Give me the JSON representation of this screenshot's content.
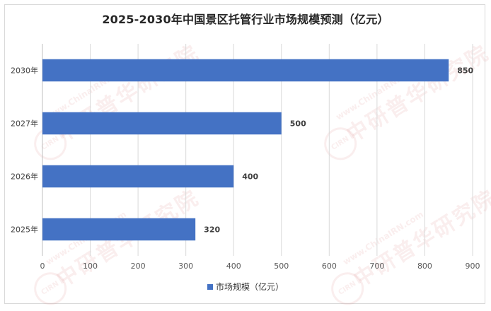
{
  "chart_data": {
    "type": "bar",
    "orientation": "horizontal",
    "title": "2025-2030年中国景区托管行业市场规模预测（亿元）",
    "categories": [
      "2030年",
      "2027年",
      "2026年",
      "2025年"
    ],
    "series": [
      {
        "name": "市场规模（亿元）",
        "values": [
          850,
          500,
          400,
          320
        ],
        "color": "#4472C4"
      }
    ],
    "xlim": [
      0,
      900
    ],
    "xticks": [
      "0",
      "100",
      "200",
      "300",
      "400",
      "500",
      "600",
      "700",
      "800",
      "900"
    ],
    "grid": true,
    "legend": "bottom"
  },
  "watermark": {
    "line1": "www.ChinaIRN.com",
    "line2": "中研普华研究院",
    "logo": "CIRN"
  }
}
